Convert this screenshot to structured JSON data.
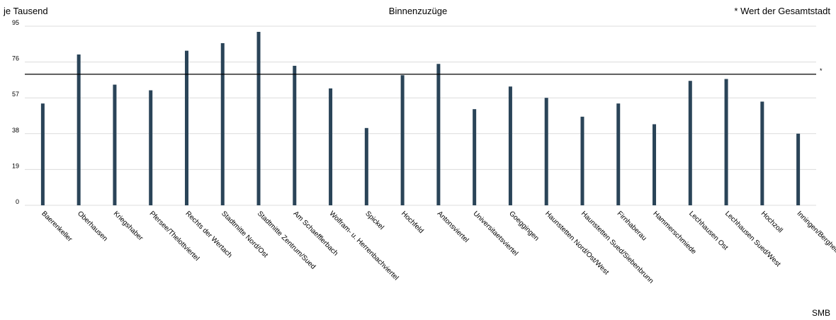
{
  "header": {
    "unit_label": "je Tausend",
    "title": "Binnenzuzüge",
    "note": "* Wert der Gesamtstadt",
    "source": "SMB"
  },
  "colors": {
    "bar": "#2a4458",
    "grid": "#dcdcdc",
    "reference": "#000000"
  },
  "chart_data": {
    "type": "bar",
    "title": "Binnenzuzüge",
    "ylabel": "je Tausend",
    "xlabel": "",
    "ylim": [
      0,
      95
    ],
    "yticks": [
      0,
      19,
      38,
      57,
      76,
      95
    ],
    "grid": true,
    "categories": [
      "Baerenkeller",
      "Oberhausen",
      "Kriegshaber",
      "Pfersee/Thelottviertel",
      "Rechts der Wertach",
      "Stadtmitte Nord/Ost",
      "Stadtmitte Zentrum/Sued",
      "Am Schaefflerbach",
      "Wolfram- u. Herrenbachviertel",
      "Spickel",
      "Hochfeld",
      "Antonsviertel",
      "Universitaetsviertel",
      "Goeggingen",
      "Haunstetten Nord/Ost/West",
      "Haunstetten Sued/Siebenbrunn",
      "Firnhaberau",
      "Hammerschmiede",
      "Lechhausen Ost",
      "Lechhausen Sued/West",
      "Hochzoll",
      "Inningen/Bergheim"
    ],
    "values": [
      54,
      80,
      64,
      61,
      82,
      86,
      92,
      74,
      62,
      41,
      69,
      75,
      51,
      63,
      57,
      47,
      54,
      43,
      66,
      67,
      55,
      38
    ],
    "reference_line": {
      "value": 69.5,
      "marker": "*"
    }
  }
}
